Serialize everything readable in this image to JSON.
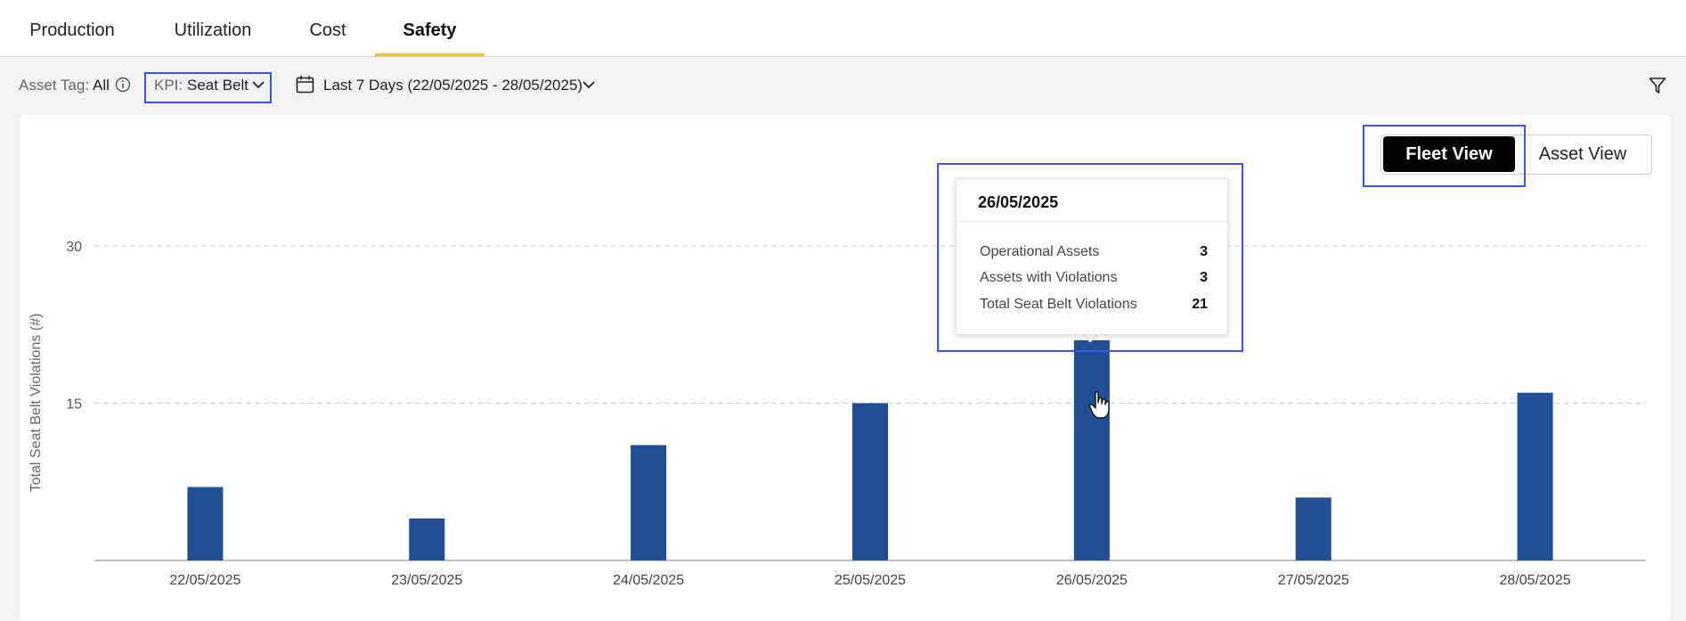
{
  "tabs": [
    {
      "label": "Production",
      "active": false
    },
    {
      "label": "Utilization",
      "active": false
    },
    {
      "label": "Cost",
      "active": false
    },
    {
      "label": "Safety",
      "active": true
    }
  ],
  "filters": {
    "asset_tag_label": "Asset Tag:",
    "asset_tag_value": "All",
    "kpi_label": "KPI:",
    "kpi_value": "Seat Belt",
    "date_range": "Last 7 Days (22/05/2025 - 28/05/2025)"
  },
  "view_toggle": {
    "fleet": "Fleet View",
    "asset": "Asset View",
    "selected": "Fleet View"
  },
  "tooltip": {
    "date": "26/05/2025",
    "rows": [
      {
        "label": "Operational Assets",
        "value": "3"
      },
      {
        "label": "Assets with Violations",
        "value": "3"
      },
      {
        "label": "Total Seat Belt Violations",
        "value": "21"
      }
    ]
  },
  "colors": {
    "bar": "#1f5096",
    "accent": "#f2c13a",
    "highlight": "#3a55e8"
  },
  "chart_data": {
    "type": "bar",
    "categories": [
      "22/05/2025",
      "23/05/2025",
      "24/05/2025",
      "25/05/2025",
      "26/05/2025",
      "27/05/2025",
      "28/05/2025"
    ],
    "values": [
      7,
      4,
      11,
      15,
      21,
      6,
      16
    ],
    "ylabel": "Total Seat Belt Violations (#)",
    "yticks": [
      15,
      30
    ],
    "ylim": [
      0,
      30
    ],
    "grid": true
  }
}
